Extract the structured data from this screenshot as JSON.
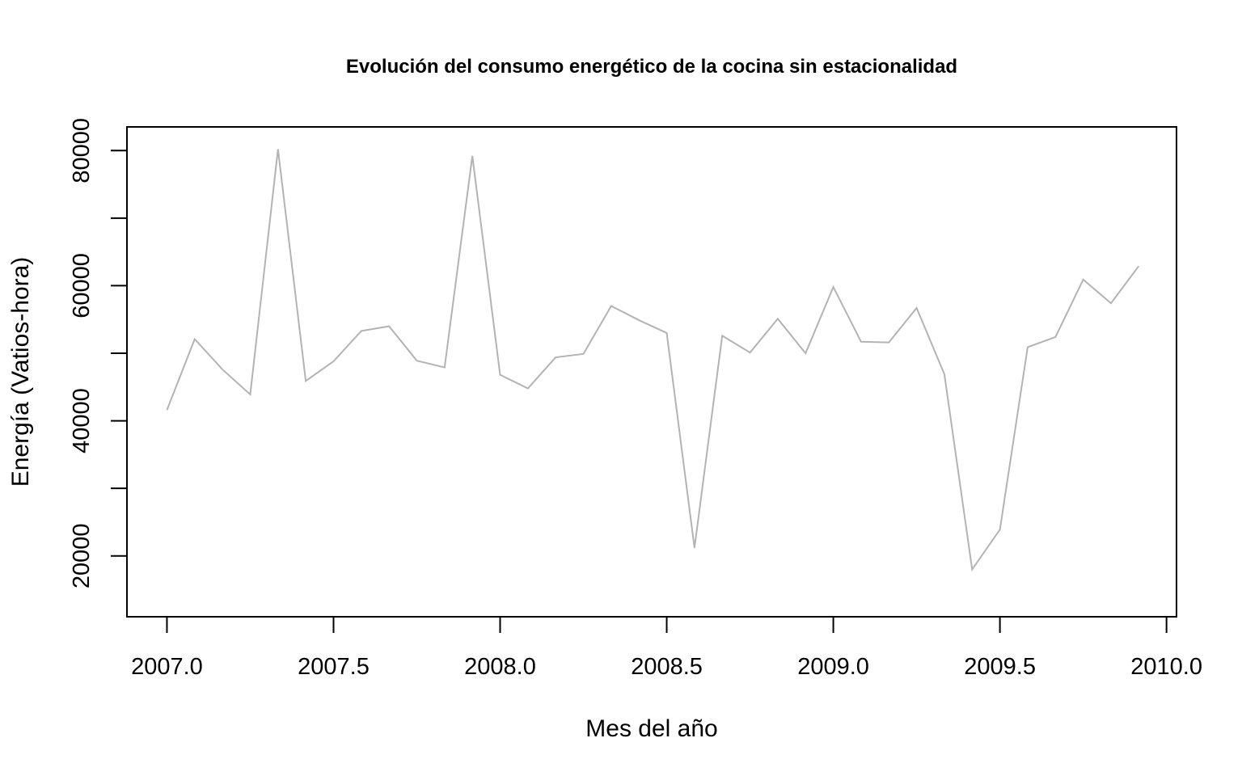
{
  "chart_data": {
    "type": "line",
    "title": "Evolución del consumo energético de la cocina sin estacionalidad",
    "xlabel": "Mes del año",
    "ylabel": "Energía (Vatios-hora)",
    "xlim": [
      2006.88,
      2010.03
    ],
    "ylim": [
      11000,
      83500
    ],
    "x_ticks": [
      "2007.0",
      "2007.5",
      "2008.0",
      "2008.5",
      "2009.0",
      "2009.5",
      "2010.0"
    ],
    "y_ticks": [
      20000,
      30000,
      40000,
      50000,
      60000,
      70000,
      80000
    ],
    "y_tick_labels": [
      "20000",
      "",
      "40000",
      "",
      "60000",
      "",
      "80000"
    ],
    "grid": false,
    "line_color": "#b3b3b3",
    "series": [
      {
        "start": 2007.0,
        "frequency": 12,
        "values": [
          41600,
          52100,
          47600,
          43900,
          80200,
          45900,
          48800,
          53300,
          54000,
          48900,
          47900,
          79200,
          46800,
          44800,
          49400,
          49900,
          57000,
          54900,
          53000,
          21200,
          52600,
          50100,
          55100,
          50000,
          59800,
          51700,
          51600,
          56700,
          46900,
          18000,
          23900,
          50900,
          52400,
          60900,
          57400,
          62900
        ]
      }
    ]
  }
}
